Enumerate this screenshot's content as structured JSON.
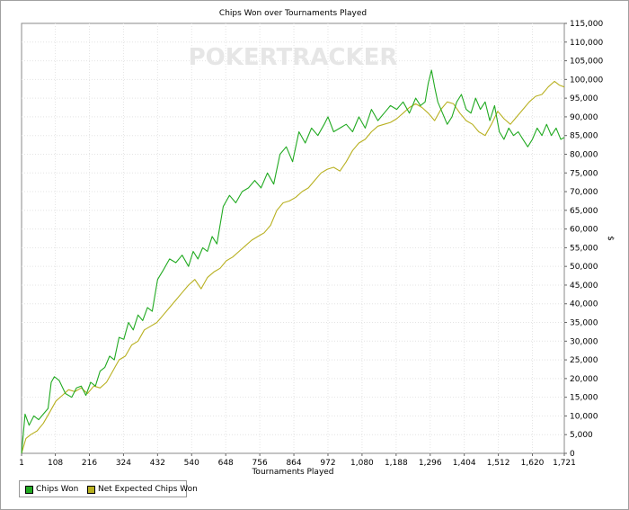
{
  "watermark": "POKERTRACKER",
  "chart_data": {
    "type": "line",
    "title": "Chips Won over Tournaments Played",
    "xlabel": "Tournaments Played",
    "ylabel": "$",
    "xlim": [
      1,
      1721
    ],
    "ylim": [
      0,
      115000
    ],
    "x_ticks": [
      1,
      108,
      216,
      324,
      432,
      540,
      648,
      756,
      864,
      972,
      1080,
      1188,
      1296,
      1404,
      1512,
      1620,
      1721
    ],
    "x_tick_labels": [
      "1",
      "108",
      "216",
      "324",
      "432",
      "540",
      "648",
      "756",
      "864",
      "972",
      "1,080",
      "1,188",
      "1,296",
      "1,404",
      "1,512",
      "1,620",
      "1,721"
    ],
    "y_ticks": [
      0,
      5000,
      10000,
      15000,
      20000,
      25000,
      30000,
      35000,
      40000,
      45000,
      50000,
      55000,
      60000,
      65000,
      70000,
      75000,
      80000,
      85000,
      90000,
      95000,
      100000,
      105000,
      110000,
      115000
    ],
    "y_tick_labels": [
      "0",
      "5,000",
      "10,000",
      "15,000",
      "20,000",
      "25,000",
      "30,000",
      "35,000",
      "40,000",
      "45,000",
      "50,000",
      "55,000",
      "60,000",
      "65,000",
      "70,000",
      "75,000",
      "80,000",
      "85,000",
      "90,000",
      "95,000",
      "100,000",
      "105,000",
      "110,000",
      "115,000"
    ],
    "grid": true,
    "legend_position": "bottom-left",
    "series": [
      {
        "name": "Chips Won",
        "color": "#22aa22",
        "x": [
          1,
          12,
          25,
          40,
          55,
          70,
          85,
          95,
          105,
          120,
          140,
          160,
          175,
          190,
          205,
          220,
          235,
          250,
          265,
          280,
          295,
          310,
          325,
          340,
          355,
          370,
          385,
          400,
          415,
          432,
          450,
          470,
          490,
          510,
          530,
          545,
          560,
          575,
          590,
          605,
          620,
          640,
          660,
          680,
          700,
          720,
          740,
          760,
          780,
          800,
          820,
          840,
          860,
          880,
          900,
          920,
          940,
          960,
          972,
          990,
          1010,
          1030,
          1050,
          1070,
          1090,
          1110,
          1130,
          1150,
          1170,
          1190,
          1210,
          1230,
          1250,
          1265,
          1280,
          1290,
          1300,
          1310,
          1320,
          1335,
          1350,
          1365,
          1380,
          1395,
          1410,
          1425,
          1440,
          1455,
          1470,
          1485,
          1500,
          1515,
          1530,
          1545,
          1560,
          1575,
          1590,
          1605,
          1620,
          1635,
          1650,
          1665,
          1680,
          1695,
          1710,
          1721
        ],
        "y": [
          0,
          10500,
          7500,
          10000,
          9000,
          10500,
          12000,
          19000,
          20500,
          19500,
          16000,
          15000,
          17500,
          18000,
          15500,
          19000,
          18000,
          22000,
          23000,
          26000,
          25000,
          31000,
          30500,
          35000,
          33000,
          37000,
          35500,
          39000,
          38000,
          46500,
          49000,
          52000,
          51000,
          53000,
          50000,
          54000,
          52000,
          55000,
          54000,
          58000,
          56000,
          66000,
          69000,
          67000,
          70000,
          71000,
          73000,
          71000,
          75000,
          72000,
          80000,
          82000,
          78000,
          86000,
          83000,
          87000,
          85000,
          88000,
          90000,
          86000,
          87000,
          88000,
          86000,
          90000,
          87000,
          92000,
          89000,
          91000,
          93000,
          92000,
          94000,
          91000,
          95000,
          93000,
          94000,
          99000,
          102500,
          98000,
          94000,
          91000,
          88000,
          90000,
          94000,
          96000,
          92000,
          91000,
          95000,
          92000,
          94000,
          89000,
          93000,
          86000,
          84000,
          87000,
          85000,
          86000,
          84000,
          82000,
          84000,
          87000,
          85000,
          88000,
          85000,
          87000,
          84000,
          84500
        ]
      },
      {
        "name": "Net Expected Chips Won",
        "color": "#b8b020",
        "x": [
          1,
          15,
          30,
          50,
          70,
          90,
          110,
          130,
          150,
          170,
          190,
          210,
          230,
          250,
          270,
          290,
          310,
          330,
          350,
          370,
          390,
          410,
          430,
          450,
          470,
          490,
          510,
          530,
          550,
          570,
          590,
          610,
          630,
          650,
          670,
          690,
          710,
          730,
          750,
          770,
          790,
          810,
          830,
          850,
          870,
          890,
          910,
          930,
          950,
          970,
          990,
          1010,
          1030,
          1050,
          1070,
          1090,
          1110,
          1130,
          1150,
          1170,
          1190,
          1210,
          1230,
          1250,
          1270,
          1290,
          1310,
          1330,
          1350,
          1370,
          1390,
          1410,
          1430,
          1450,
          1470,
          1490,
          1510,
          1530,
          1550,
          1570,
          1590,
          1610,
          1630,
          1650,
          1670,
          1690,
          1705,
          1721
        ],
        "y": [
          0,
          4000,
          5000,
          6000,
          8000,
          11000,
          14000,
          15500,
          17000,
          16500,
          17500,
          16000,
          18000,
          17500,
          19000,
          22000,
          25000,
          26000,
          29000,
          30000,
          33000,
          34000,
          35000,
          37000,
          39000,
          41000,
          43000,
          45000,
          46500,
          44000,
          47000,
          48500,
          49500,
          51500,
          52500,
          54000,
          55500,
          57000,
          58000,
          59000,
          61000,
          65000,
          67000,
          67500,
          68500,
          70000,
          71000,
          73000,
          75000,
          76000,
          76500,
          75500,
          78000,
          81000,
          83000,
          84000,
          86000,
          87500,
          88000,
          88500,
          89500,
          91000,
          92500,
          93500,
          92500,
          91000,
          89000,
          92000,
          94000,
          93500,
          91000,
          89000,
          88000,
          86000,
          85000,
          88000,
          91500,
          89500,
          88000,
          90000,
          92000,
          94000,
          95500,
          96000,
          98000,
          99500,
          98500,
          98000
        ]
      }
    ]
  }
}
